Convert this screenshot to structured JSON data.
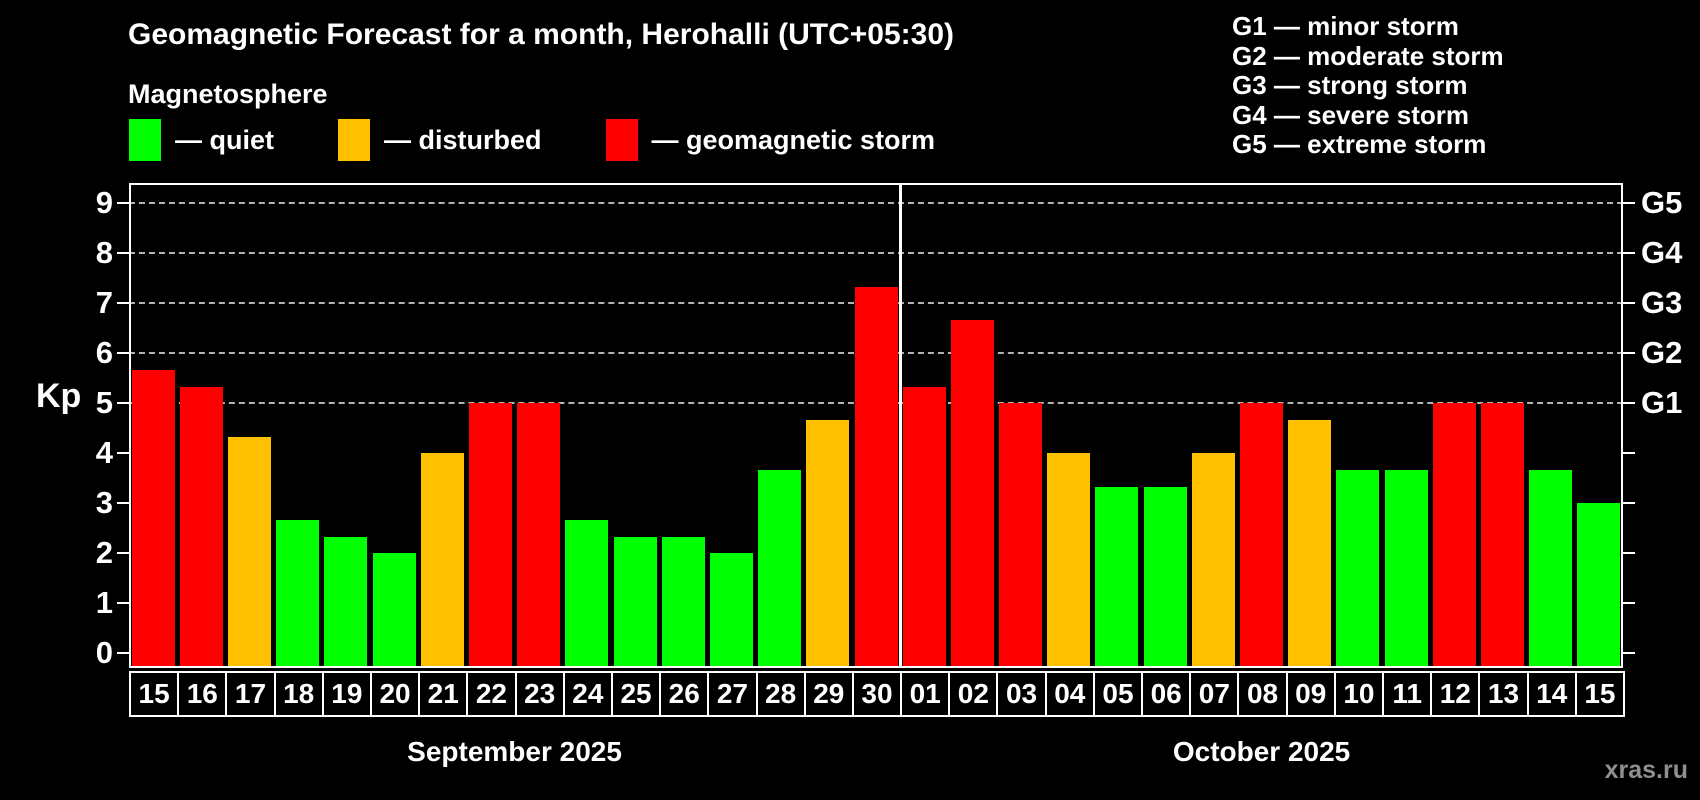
{
  "title": "Geomagnetic Forecast for a month, Herohalli (UTC+05:30)",
  "subtitle": "Magnetosphere",
  "legend": {
    "items": [
      {
        "key": "quiet",
        "label": "— quiet",
        "color": "#00ff00"
      },
      {
        "key": "disturbed",
        "label": "— disturbed",
        "color": "#ffc000"
      },
      {
        "key": "storm",
        "label": "— geomagnetic storm",
        "color": "#ff0000"
      }
    ]
  },
  "g_scale_legend": {
    "lines": [
      "G1 — minor storm",
      "G2 — moderate storm",
      "G3 — strong storm",
      "G4 — severe storm",
      "G5 — extreme storm"
    ]
  },
  "watermark": "xras.ru",
  "colors": {
    "background": "#000000",
    "frame": "#ffffff",
    "gridline": "#b3b3b3",
    "quiet": "#00ff00",
    "disturbed": "#ffc000",
    "storm": "#ff0000",
    "watermark": "#8f8f8f"
  },
  "chart_data": {
    "type": "bar",
    "title": "Geomagnetic Forecast for a month, Herohalli (UTC+05:30)",
    "ylabel": "Kp",
    "ylim": [
      0,
      9
    ],
    "yticks": [
      0,
      1,
      2,
      3,
      4,
      5,
      6,
      7,
      8,
      9
    ],
    "gridlines_at": [
      5,
      6,
      7,
      8,
      9
    ],
    "grid_style": "dashed",
    "legend_position": "top-left",
    "right_axis": [
      {
        "kp": 5,
        "label": "G1"
      },
      {
        "kp": 6,
        "label": "G2"
      },
      {
        "kp": 7,
        "label": "G3"
      },
      {
        "kp": 8,
        "label": "G4"
      },
      {
        "kp": 9,
        "label": "G5"
      }
    ],
    "level_colors": {
      "quiet": "#00ff00",
      "disturbed": "#ffc000",
      "storm": "#ff0000"
    },
    "months": [
      {
        "label": "September 2025",
        "days": [
          {
            "day": "15",
            "kp": 5.67,
            "level": "storm"
          },
          {
            "day": "16",
            "kp": 5.33,
            "level": "storm"
          },
          {
            "day": "17",
            "kp": 4.33,
            "level": "disturbed"
          },
          {
            "day": "18",
            "kp": 2.67,
            "level": "quiet"
          },
          {
            "day": "19",
            "kp": 2.33,
            "level": "quiet"
          },
          {
            "day": "20",
            "kp": 2.0,
            "level": "quiet"
          },
          {
            "day": "21",
            "kp": 4.0,
            "level": "disturbed"
          },
          {
            "day": "22",
            "kp": 5.0,
            "level": "storm"
          },
          {
            "day": "23",
            "kp": 5.0,
            "level": "storm"
          },
          {
            "day": "24",
            "kp": 2.67,
            "level": "quiet"
          },
          {
            "day": "25",
            "kp": 2.33,
            "level": "quiet"
          },
          {
            "day": "26",
            "kp": 2.33,
            "level": "quiet"
          },
          {
            "day": "27",
            "kp": 2.0,
            "level": "quiet"
          },
          {
            "day": "28",
            "kp": 3.67,
            "level": "quiet"
          },
          {
            "day": "29",
            "kp": 4.67,
            "level": "disturbed"
          },
          {
            "day": "30",
            "kp": 7.33,
            "level": "storm"
          }
        ]
      },
      {
        "label": "October 2025",
        "days": [
          {
            "day": "01",
            "kp": 5.33,
            "level": "storm"
          },
          {
            "day": "02",
            "kp": 6.67,
            "level": "storm"
          },
          {
            "day": "03",
            "kp": 5.0,
            "level": "storm"
          },
          {
            "day": "04",
            "kp": 4.0,
            "level": "disturbed"
          },
          {
            "day": "05",
            "kp": 3.33,
            "level": "quiet"
          },
          {
            "day": "06",
            "kp": 3.33,
            "level": "quiet"
          },
          {
            "day": "07",
            "kp": 4.0,
            "level": "disturbed"
          },
          {
            "day": "08",
            "kp": 5.0,
            "level": "storm"
          },
          {
            "day": "09",
            "kp": 4.67,
            "level": "disturbed"
          },
          {
            "day": "10",
            "kp": 3.67,
            "level": "quiet"
          },
          {
            "day": "11",
            "kp": 3.67,
            "level": "quiet"
          },
          {
            "day": "12",
            "kp": 5.0,
            "level": "storm"
          },
          {
            "day": "13",
            "kp": 5.0,
            "level": "storm"
          },
          {
            "day": "14",
            "kp": 3.67,
            "level": "quiet"
          },
          {
            "day": "15",
            "kp": 3.0,
            "level": "quiet"
          }
        ]
      }
    ]
  }
}
